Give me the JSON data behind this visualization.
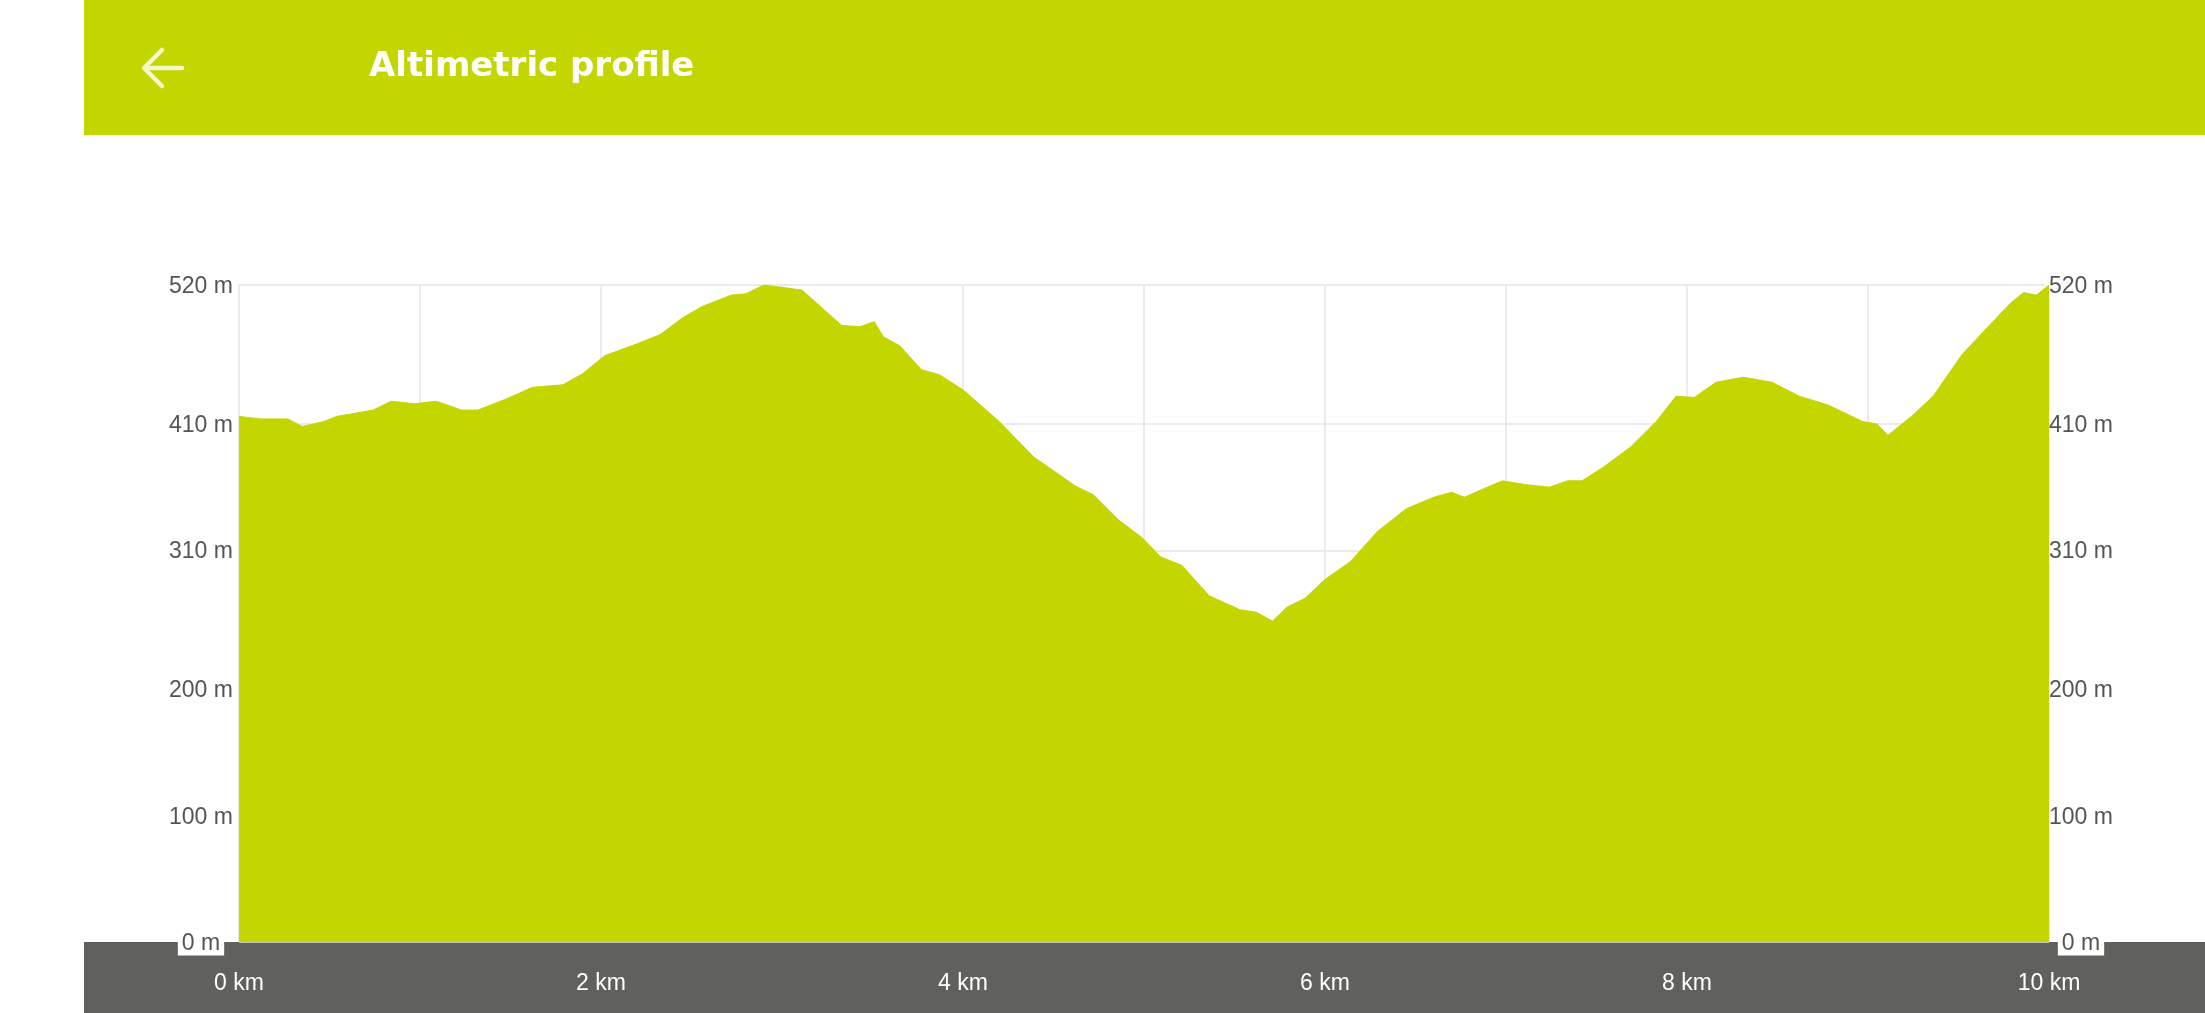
{
  "chart_data": {
    "type": "area",
    "title": "Altimetric profile",
    "x": [
      0,
      0.12,
      0.27,
      0.35,
      0.47,
      0.54,
      0.74,
      0.84,
      0.97,
      1.09,
      1.23,
      1.32,
      1.48,
      1.62,
      1.79,
      1.9,
      2.02,
      2.21,
      2.33,
      2.45,
      2.56,
      2.72,
      2.8,
      2.9,
      3.11,
      3.33,
      3.43,
      3.51,
      3.56,
      3.65,
      3.77,
      3.87,
      4.0,
      4.2,
      4.39,
      4.62,
      4.72,
      4.86,
      4.99,
      5.09,
      5.21,
      5.36,
      5.53,
      5.62,
      5.71,
      5.79,
      5.89,
      6.0,
      6.14,
      6.29,
      6.45,
      6.6,
      6.7,
      6.77,
      6.88,
      6.98,
      7.11,
      7.24,
      7.34,
      7.42,
      7.54,
      7.69,
      7.83,
      7.94,
      8.04,
      8.16,
      8.31,
      8.47,
      8.62,
      8.78,
      8.97,
      9.05,
      9.11,
      9.24,
      9.36,
      9.52,
      9.67,
      9.79,
      9.86,
      9.93,
      10.0
    ],
    "series": [
      {
        "color": "#c4d600",
        "values": [
          416,
          414,
          414,
          408,
          412,
          416,
          421,
          428,
          426,
          428,
          421,
          421,
          430,
          439,
          441,
          450,
          464,
          474,
          481,
          494,
          503,
          512,
          513,
          520,
          516,
          488,
          487,
          491,
          479,
          472,
          453,
          449,
          437,
          412,
          384,
          361,
          354,
          334,
          320,
          305,
          298,
          274,
          263,
          261,
          254,
          265,
          272,
          287,
          301,
          325,
          343,
          352,
          356,
          352,
          359,
          365,
          362,
          360,
          365,
          365,
          376,
          392,
          412,
          432,
          431,
          443,
          447,
          443,
          432,
          425,
          412,
          410,
          401,
          416,
          432,
          465,
          488,
          506,
          514,
          512,
          520
        ]
      }
    ],
    "xlim": [
      0,
      10
    ],
    "xticks": [
      {
        "value": 0,
        "label": "0 km"
      },
      {
        "value": 1,
        "label": null
      },
      {
        "value": 2,
        "label": "2 km"
      },
      {
        "value": 3,
        "label": null
      },
      {
        "value": 4,
        "label": "4 km"
      },
      {
        "value": 5,
        "label": null
      },
      {
        "value": 6,
        "label": "6 km"
      },
      {
        "value": 7,
        "label": null
      },
      {
        "value": 8,
        "label": "8 km"
      },
      {
        "value": 9,
        "label": null
      },
      {
        "value": 10,
        "label": "10 km"
      }
    ],
    "ylim": [
      0,
      520
    ],
    "yticks": [
      {
        "value": 0,
        "label": "0 m"
      },
      {
        "value": 100,
        "label": "100 m"
      },
      {
        "value": 200,
        "label": "200 m"
      },
      {
        "value": 310,
        "label": "310 m"
      },
      {
        "value": 410,
        "label": "410 m"
      },
      {
        "value": 520,
        "label": "520 m"
      }
    ],
    "y2lim": [
      0,
      520
    ],
    "y2ticks": [
      {
        "value": 0,
        "label": "0 m"
      },
      {
        "value": 100,
        "label": "100 m"
      },
      {
        "value": 200,
        "label": "200 m"
      },
      {
        "value": 310,
        "label": "310 m"
      },
      {
        "value": 410,
        "label": "410 m"
      },
      {
        "value": 520,
        "label": "520 m"
      }
    ],
    "grid": true
  }
}
